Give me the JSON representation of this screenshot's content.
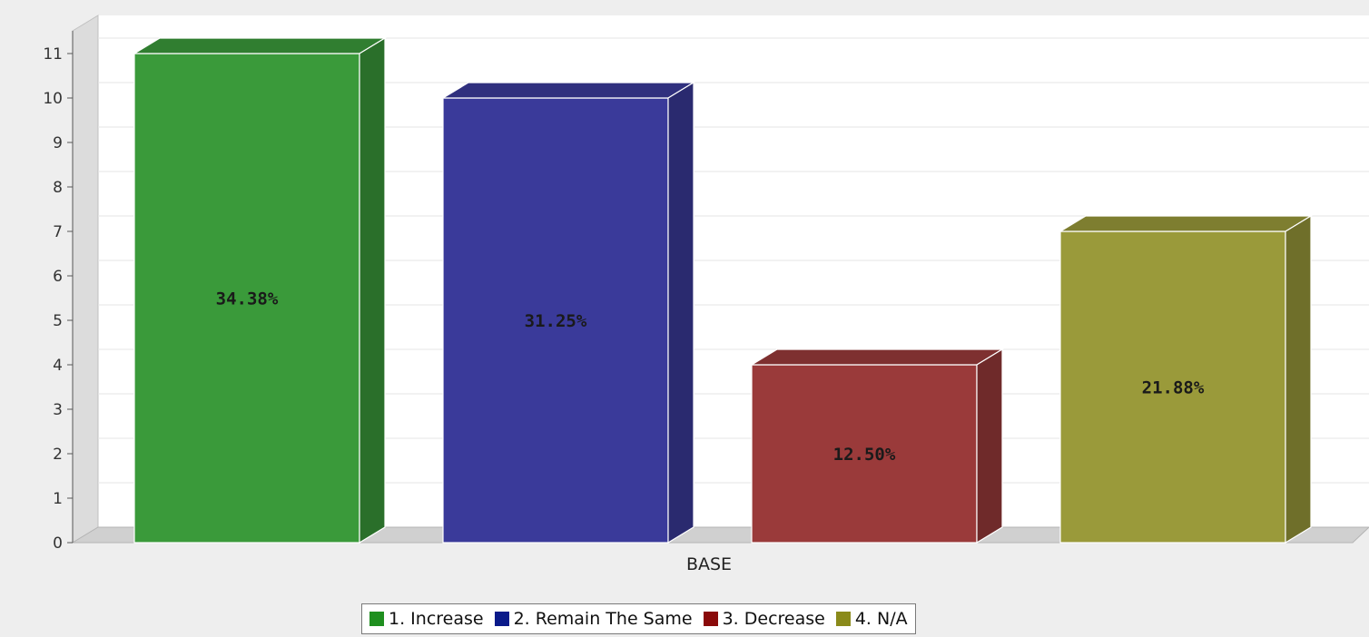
{
  "chart_data": {
    "type": "bar",
    "categories": [
      "BASE"
    ],
    "series": [
      {
        "name": "1. Increase",
        "values": [
          11
        ],
        "label": "34.38%",
        "color": "#3a9a3a"
      },
      {
        "name": "2. Remain The Same",
        "values": [
          10
        ],
        "label": "31.25%",
        "color": "#3a3a9a"
      },
      {
        "name": "3. Decrease",
        "values": [
          4
        ],
        "label": "12.50%",
        "color": "#9a3a3a"
      },
      {
        "name": "4. N/A",
        "values": [
          7
        ],
        "label": "21.88%",
        "color": "#9a9a3a"
      }
    ],
    "yticks": [
      "0",
      "1",
      "2",
      "3",
      "4",
      "5",
      "6",
      "7",
      "8",
      "9",
      "10",
      "11"
    ],
    "ylim": [
      0,
      11
    ],
    "grid": true,
    "legend_position": "bottom",
    "title": "",
    "xlabel": "",
    "ylabel": ""
  }
}
